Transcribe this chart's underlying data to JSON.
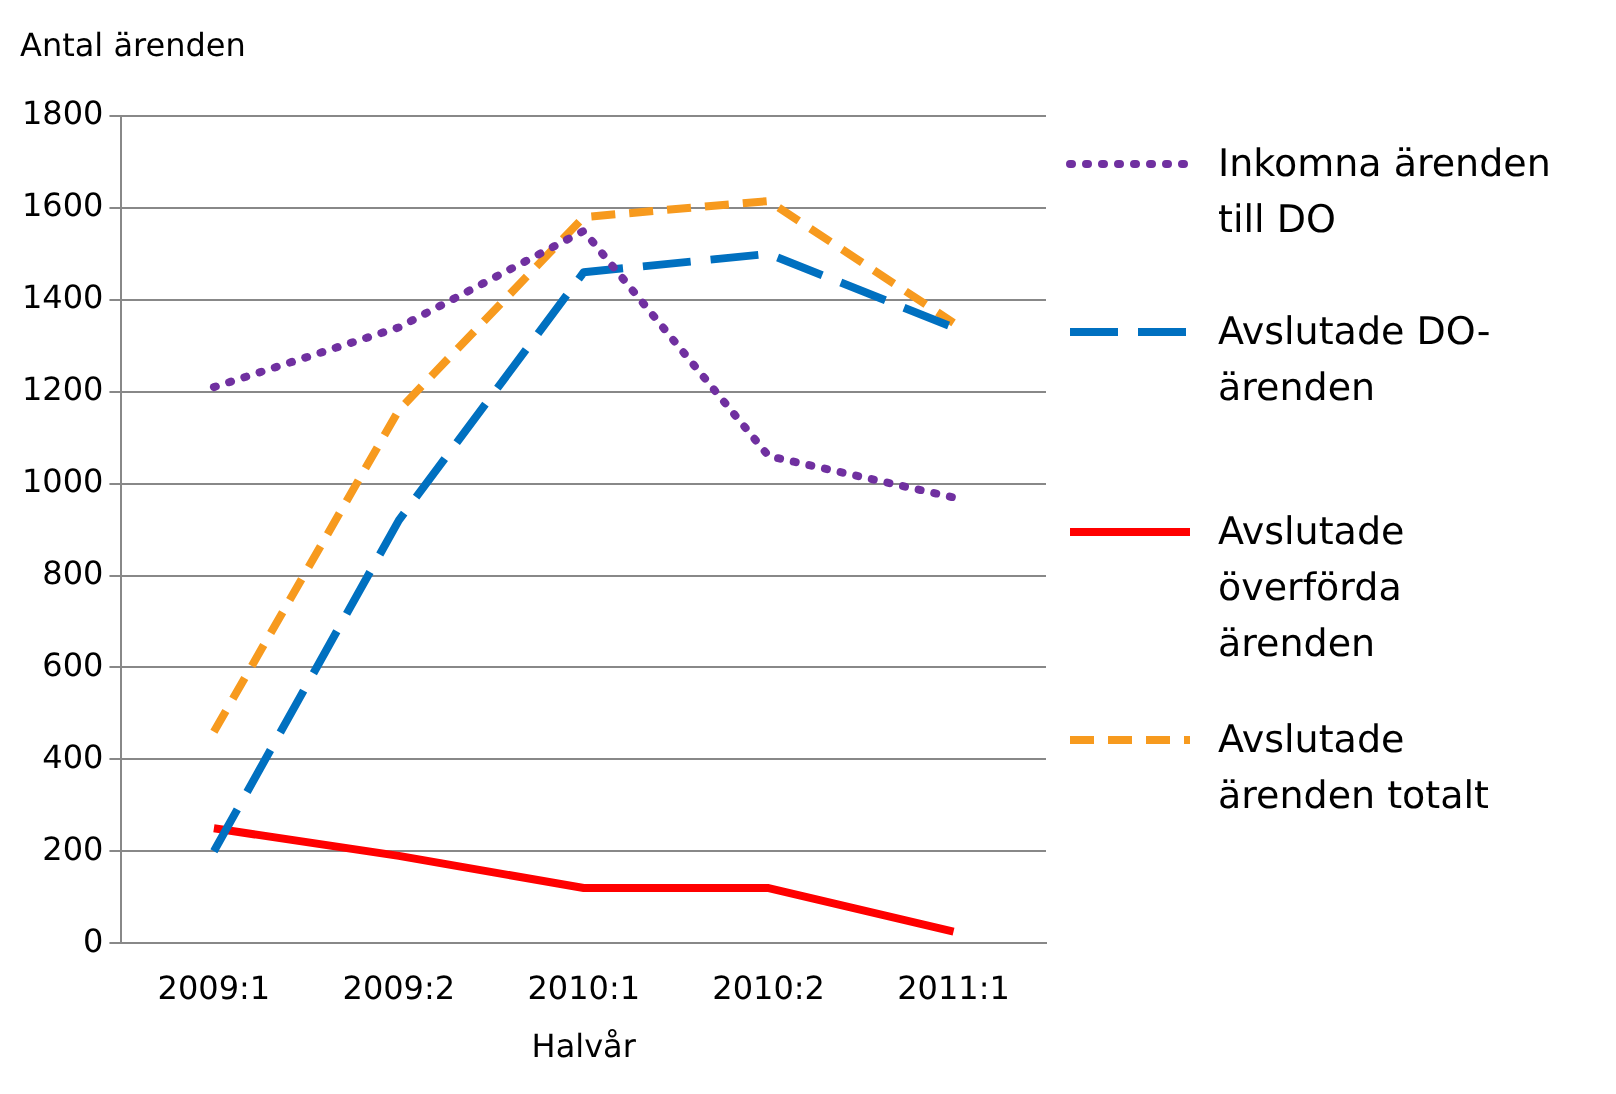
{
  "chart_data": {
    "type": "line",
    "ylabel": "Antal ärenden",
    "xlabel": "Halvår",
    "categories": [
      "2009:1",
      "2009:2",
      "2010:1",
      "2010:2",
      "2011:1"
    ],
    "series": [
      {
        "name": "Inkomna ärenden till DO",
        "color": "#7030a0",
        "line_style": "dotted",
        "values": [
          1210,
          1340,
          1550,
          1060,
          970
        ]
      },
      {
        "name": "Avslutade DO-ärenden",
        "color": "#0070c0",
        "line_style": "dashed",
        "values": [
          200,
          920,
          1460,
          1500,
          1340
        ]
      },
      {
        "name": "Avslutade överförda ärenden",
        "color": "#ff0000",
        "line_style": "solid",
        "values": [
          250,
          190,
          120,
          120,
          25
        ]
      },
      {
        "name": "Avslutade ärenden totalt",
        "color": "#f79a1e",
        "line_style": "dashed",
        "values": [
          460,
          1160,
          1580,
          1615,
          1350
        ]
      }
    ],
    "ylim": [
      0,
      1800
    ],
    "yticks": [
      0,
      200,
      400,
      600,
      800,
      1000,
      1200,
      1400,
      1600,
      1800
    ],
    "grid": "y",
    "legend": "right",
    "marker": "none"
  }
}
